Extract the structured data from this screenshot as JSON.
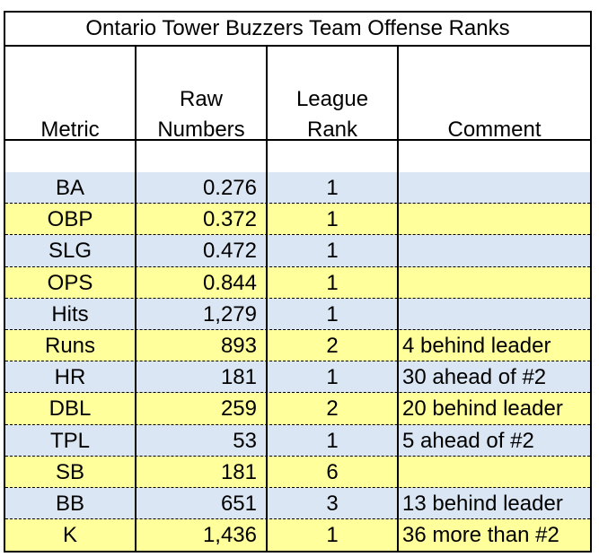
{
  "title": "Ontario Tower Buzzers Team Offense Ranks",
  "headers": {
    "metric": "Metric",
    "raw_line1": "Raw",
    "raw_line2": "Numbers",
    "rank_line1": "League",
    "rank_line2": "Rank",
    "comment": "Comment"
  },
  "colors": {
    "blue_row": "#dae6f3",
    "yellow_row": "#ffff9c",
    "border": "#000000"
  },
  "rows": [
    {
      "metric": "BA",
      "raw": "0.276",
      "rank": "1",
      "comment": "",
      "color": "#dae6f3"
    },
    {
      "metric": "OBP",
      "raw": "0.372",
      "rank": "1",
      "comment": "",
      "color": "#ffff9c"
    },
    {
      "metric": "SLG",
      "raw": "0.472",
      "rank": "1",
      "comment": "",
      "color": "#dae6f3"
    },
    {
      "metric": "OPS",
      "raw": "0.844",
      "rank": "1",
      "comment": "",
      "color": "#ffff9c"
    },
    {
      "metric": "Hits",
      "raw": "1,279",
      "rank": "1",
      "comment": "",
      "color": "#dae6f3"
    },
    {
      "metric": "Runs",
      "raw": "893",
      "rank": "2",
      "comment": "4 behind leader",
      "color": "#ffff9c"
    },
    {
      "metric": "HR",
      "raw": "181",
      "rank": "1",
      "comment": "30 ahead of #2",
      "color": "#dae6f3"
    },
    {
      "metric": "DBL",
      "raw": "259",
      "rank": "2",
      "comment": "20 behind leader",
      "color": "#ffff9c"
    },
    {
      "metric": "TPL",
      "raw": "53",
      "rank": "1",
      "comment": "5 ahead of #2",
      "color": "#dae6f3"
    },
    {
      "metric": "SB",
      "raw": "181",
      "rank": "6",
      "comment": "",
      "color": "#ffff9c"
    },
    {
      "metric": "BB",
      "raw": "651",
      "rank": "3",
      "comment": "13 behind leader",
      "color": "#dae6f3"
    },
    {
      "metric": "K",
      "raw": "1,436",
      "rank": "1",
      "comment": "36 more than #2",
      "color": "#ffff9c"
    }
  ]
}
